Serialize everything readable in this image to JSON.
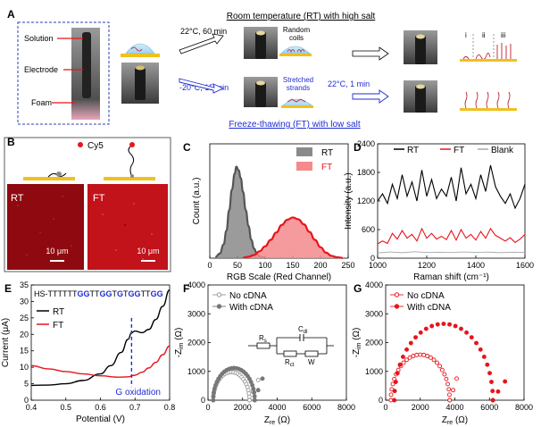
{
  "panel_a": {
    "letter": "A",
    "rt_title": "Room temperature (RT) with high salt",
    "ft_title": "Freeze-thawing (FT) with low salt",
    "labels": {
      "solution": "Solution",
      "electrode": "Electrode",
      "foam": "Foam"
    },
    "rt_step": "22°C, 60 min",
    "ft_step": "-20°C, 15 min",
    "random_coils": [
      "Random",
      "coils"
    ],
    "stretched": [
      "Stretched",
      "strands"
    ],
    "thaw_step": "22°C, 1 min",
    "roman": [
      "i",
      "ii",
      "iii"
    ]
  },
  "panel_b": {
    "letter": "B",
    "dye": "Cy5",
    "rt_label": "RT",
    "ft_label": "FT",
    "scale_rt": "10 μm",
    "scale_ft": "10 μm"
  },
  "panel_c": {
    "letter": "C",
    "legend": [
      "RT",
      "FT"
    ]
  },
  "panel_d": {
    "letter": "D",
    "legend": [
      "RT",
      "FT",
      "Blank"
    ]
  },
  "panel_e": {
    "letter": "E",
    "sequence_prefix": "HS-TTTTTT",
    "sequence_parts": [
      {
        "text": "GG",
        "g": true
      },
      {
        "text": "TT",
        "g": false
      },
      {
        "text": "GG",
        "g": true
      },
      {
        "text": "T",
        "g": false
      },
      {
        "text": "G",
        "g": true
      },
      {
        "text": "T",
        "g": false
      },
      {
        "text": "GG",
        "g": true
      },
      {
        "text": "TT",
        "g": false
      },
      {
        "text": "GG",
        "g": true
      }
    ],
    "legend": [
      "RT",
      "FT"
    ],
    "annotation": "G oxidation"
  },
  "panel_f": {
    "letter": "F",
    "legend": [
      "No cDNA",
      "With cDNA"
    ],
    "circuit": {
      "rs": "R",
      "rs_sub": "s",
      "cdl": "C",
      "cdl_sub": "dl",
      "rct": "R",
      "rct_sub": "ct",
      "w": "W"
    }
  },
  "panel_g": {
    "letter": "G",
    "legend": [
      "No cDNA",
      "With cDNA"
    ]
  },
  "colors": {
    "black": "#000000",
    "red": "#e8141b",
    "gray": "#a8a8a8",
    "blue": "#1f2cd0",
    "gold": "#f0c020"
  },
  "chart_data": [
    {
      "id": "C",
      "type": "area",
      "xlabel": "RGB Scale (Red Channel)",
      "ylabel": "Count (a.u.)",
      "xlim": [
        0,
        250
      ],
      "xticks": [
        0,
        50,
        100,
        150,
        200,
        250
      ],
      "ylim": [
        0,
        5000
      ],
      "yticks": [],
      "series": [
        {
          "name": "RT",
          "color": "#555555",
          "fill": "#8a8a8a",
          "x": [
            10,
            18,
            25,
            30,
            35,
            40,
            45,
            48,
            52,
            56,
            60,
            65,
            70,
            75,
            80,
            85,
            90,
            95,
            100
          ],
          "y": [
            50,
            200,
            600,
            1200,
            2100,
            3000,
            3700,
            4000,
            3850,
            3500,
            2900,
            2100,
            1400,
            800,
            420,
            200,
            90,
            40,
            10
          ]
        },
        {
          "name": "FT",
          "color": "#e8141b",
          "fill": "#f48a8c",
          "x": [
            60,
            70,
            80,
            90,
            100,
            110,
            120,
            130,
            140,
            150,
            160,
            170,
            180,
            190,
            200,
            210,
            220,
            230,
            240
          ],
          "y": [
            20,
            60,
            140,
            300,
            520,
            800,
            1120,
            1450,
            1680,
            1780,
            1700,
            1480,
            1150,
            800,
            480,
            240,
            100,
            40,
            10
          ]
        }
      ]
    },
    {
      "id": "D",
      "type": "line",
      "xlabel": "Raman shift (cm⁻¹)",
      "ylabel": "Intensity (a.u.)",
      "xlim": [
        1000,
        1600
      ],
      "xticks": [
        1000,
        1200,
        1400,
        1600
      ],
      "ylim": [
        0,
        2400
      ],
      "yticks": [
        0,
        600,
        1200,
        1800,
        2400
      ],
      "series": [
        {
          "name": "RT",
          "color": "#000000",
          "x": [
            1000,
            1020,
            1040,
            1060,
            1080,
            1100,
            1120,
            1140,
            1160,
            1180,
            1200,
            1220,
            1240,
            1260,
            1280,
            1300,
            1320,
            1340,
            1360,
            1380,
            1400,
            1420,
            1440,
            1460,
            1480,
            1500,
            1520,
            1540,
            1560,
            1580,
            1600
          ],
          "y": [
            1200,
            1350,
            1150,
            1550,
            1250,
            1750,
            1300,
            1600,
            1200,
            1850,
            1300,
            1650,
            1250,
            1450,
            1300,
            1700,
            1200,
            1900,
            1350,
            1550,
            1250,
            1750,
            1400,
            1950,
            1500,
            1300,
            1150,
            1350,
            1050,
            1250,
            1550
          ]
        },
        {
          "name": "FT",
          "color": "#e8141b",
          "x": [
            1000,
            1020,
            1040,
            1060,
            1080,
            1100,
            1120,
            1140,
            1160,
            1180,
            1200,
            1220,
            1240,
            1260,
            1280,
            1300,
            1320,
            1340,
            1360,
            1380,
            1400,
            1420,
            1440,
            1460,
            1480,
            1500,
            1520,
            1540,
            1560,
            1580,
            1600
          ],
          "y": [
            300,
            360,
            310,
            520,
            400,
            580,
            420,
            500,
            360,
            620,
            420,
            520,
            400,
            460,
            390,
            580,
            380,
            600,
            420,
            500,
            380,
            560,
            420,
            620,
            480,
            420,
            360,
            430,
            330,
            400,
            500
          ]
        },
        {
          "name": "Blank",
          "color": "#a8a8a8",
          "x": [
            1000,
            1050,
            1100,
            1150,
            1200,
            1250,
            1300,
            1350,
            1400,
            1450,
            1500,
            1550,
            1600
          ],
          "y": [
            110,
            130,
            115,
            135,
            120,
            125,
            118,
            130,
            120,
            128,
            115,
            125,
            120
          ]
        }
      ]
    },
    {
      "id": "E",
      "type": "line",
      "xlabel": "Potential (V)",
      "ylabel": "Current (μA)",
      "xlim": [
        0.4,
        0.8
      ],
      "xticks": [
        0.4,
        0.5,
        0.6,
        0.7,
        0.8
      ],
      "ylim": [
        0,
        35
      ],
      "yticks": [
        0,
        5,
        10,
        15,
        20,
        25,
        30,
        35
      ],
      "marker_x": 0.69,
      "series": [
        {
          "name": "RT",
          "color": "#000000",
          "x": [
            0.4,
            0.45,
            0.5,
            0.55,
            0.6,
            0.63,
            0.66,
            0.68,
            0.69,
            0.7,
            0.72,
            0.74,
            0.76,
            0.78,
            0.8
          ],
          "y": [
            4.5,
            4.6,
            5.0,
            6.0,
            8.0,
            10.5,
            14.5,
            18.5,
            20.5,
            21.0,
            20.5,
            21.5,
            24.5,
            28.5,
            33.5
          ]
        },
        {
          "name": "FT",
          "color": "#e8141b",
          "x": [
            0.4,
            0.45,
            0.5,
            0.55,
            0.6,
            0.65,
            0.68,
            0.7,
            0.72,
            0.74,
            0.76,
            0.78,
            0.8
          ],
          "y": [
            10.5,
            9.5,
            8.7,
            8.0,
            7.4,
            7.0,
            7.1,
            7.6,
            8.5,
            9.8,
            11.5,
            13.8,
            16.5
          ]
        }
      ]
    },
    {
      "id": "F",
      "type": "scatter",
      "xlabel": "Z_re (Ω)",
      "ylabel": "-Z_im (Ω)",
      "xlim": [
        0,
        8000
      ],
      "xticks": [
        0,
        2000,
        4000,
        6000,
        8000
      ],
      "ylim": [
        0,
        4000
      ],
      "yticks": [
        0,
        1000,
        2000,
        3000,
        4000
      ],
      "series": [
        {
          "name": "No cDNA",
          "color": "#999999",
          "center": 1350,
          "radius": 1050,
          "tail": [
            [
              2400,
              0
            ],
            [
              2600,
              300
            ],
            [
              2900,
              700
            ]
          ]
        },
        {
          "name": "With cDNA",
          "color": "#777777",
          "center": 1500,
          "radius": 1200,
          "tail": [
            [
              2700,
              0
            ],
            [
              2900,
              350
            ],
            [
              3150,
              750
            ]
          ]
        }
      ]
    },
    {
      "id": "G",
      "type": "scatter",
      "xlabel": "Z_re (Ω)",
      "ylabel": "-Z_im (Ω)",
      "xlim": [
        0,
        8000
      ],
      "xticks": [
        0,
        2000,
        4000,
        6000,
        8000
      ],
      "ylim": [
        0,
        4000
      ],
      "yticks": [
        0,
        1000,
        2000,
        3000,
        4000
      ],
      "series": [
        {
          "name": "No cDNA",
          "color": "#e8141b",
          "center": 2000,
          "radius": 1700,
          "tail": [
            [
              3700,
              0
            ],
            [
              3900,
              350
            ],
            [
              4100,
              750
            ]
          ]
        },
        {
          "name": "With cDNA",
          "color": "#e8141b",
          "center": 3350,
          "radius": 2850,
          "tail": [
            [
              6200,
              0
            ],
            [
              6500,
              300
            ],
            [
              6900,
              650
            ]
          ]
        }
      ]
    }
  ]
}
